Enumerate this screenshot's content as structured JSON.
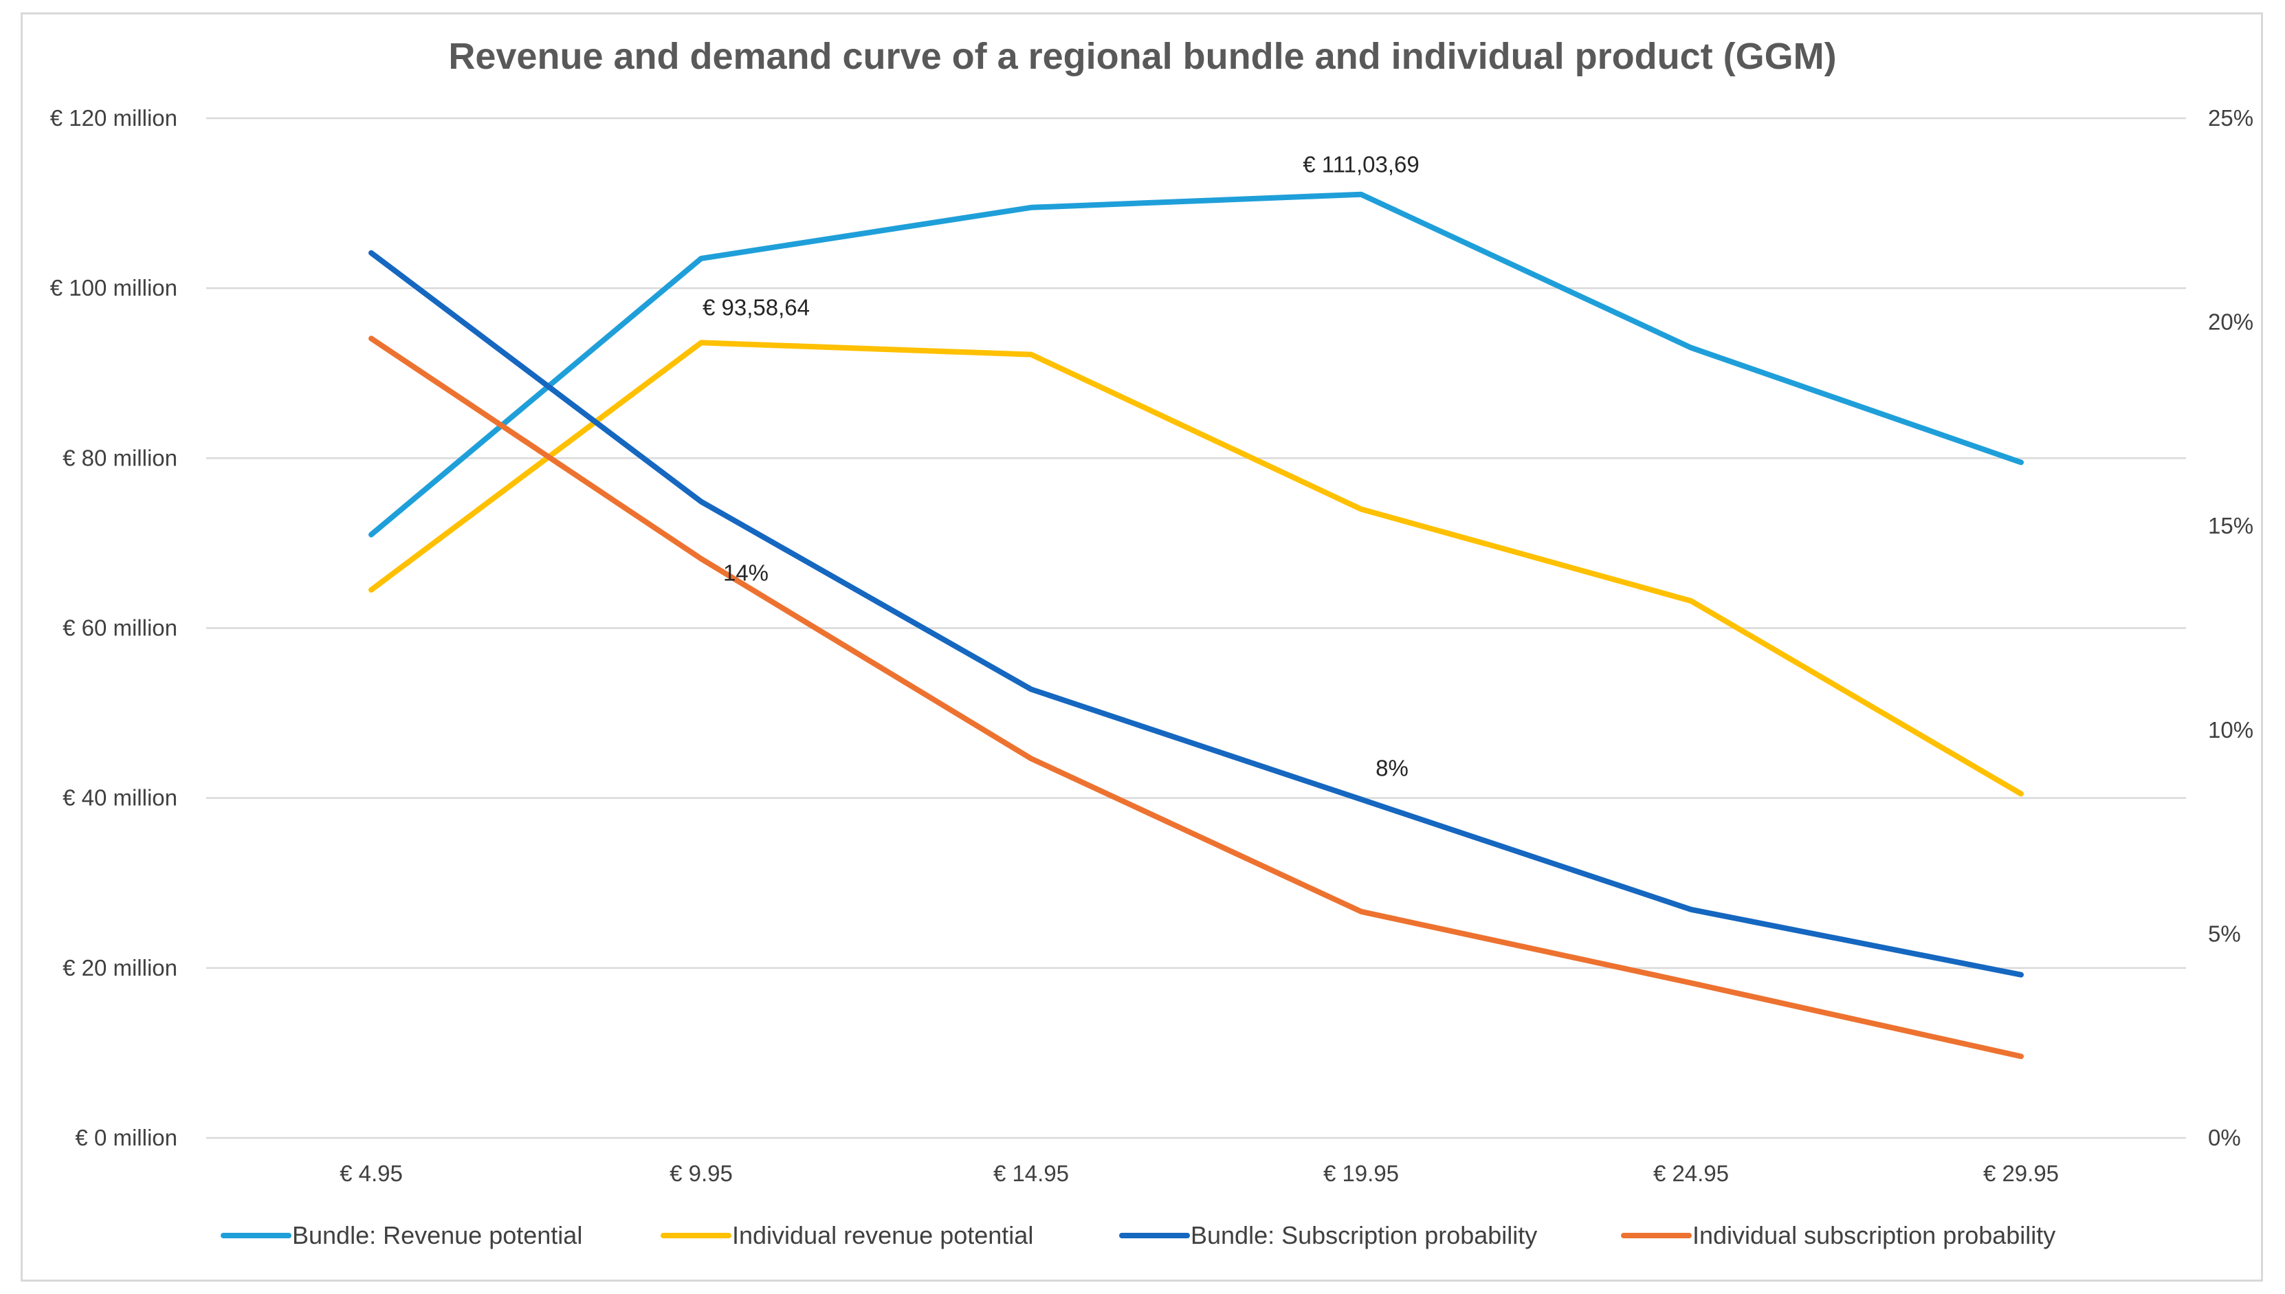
{
  "chart_data": {
    "type": "line",
    "title": "Revenue and demand curve of a regional bundle and individual product (GGM)",
    "categories": [
      "€ 4.95",
      "€ 9.95",
      "€ 14.95",
      "€ 19.95",
      "€ 24.95",
      "€ 29.95"
    ],
    "y_left": {
      "ticks": [
        "€ 0 million",
        "€ 20 million",
        "€ 40 million",
        "€ 60 million",
        "€ 80 million",
        "€ 100 million",
        "€ 120 million"
      ],
      "ylim": [
        0,
        120
      ],
      "grid": true
    },
    "y_right": {
      "ticks": [
        "0%",
        "5%",
        "10%",
        "15%",
        "20%",
        "25%"
      ],
      "ylim": [
        0,
        25
      ]
    },
    "series": [
      {
        "name": "Bundle: Revenue potential",
        "axis": "left",
        "color": "#1f9fd9",
        "values": [
          71,
          103.5,
          109.5,
          111.04,
          93,
          79.5
        ]
      },
      {
        "name": "Individual revenue potential",
        "axis": "left",
        "color": "#ffc000",
        "values": [
          64.5,
          93.59,
          92.2,
          74,
          63.2,
          40.5
        ]
      },
      {
        "name": "Bundle: Subscription probability",
        "axis": "right",
        "color": "#1567c0",
        "values": [
          21.7,
          15.6,
          11.0,
          8.3,
          5.6,
          4.0
        ]
      },
      {
        "name": "Individual subscription probability",
        "axis": "right",
        "color": "#ed7230",
        "values": [
          19.6,
          14.2,
          9.3,
          5.55,
          3.8,
          2.0
        ]
      }
    ],
    "annotations": [
      {
        "text": "€ 111,03,69",
        "series": 0,
        "index": 3
      },
      {
        "text": "€ 93,58,64",
        "series": 1,
        "index": 1
      },
      {
        "text": "14%",
        "series": 3,
        "index": 1
      },
      {
        "text": "8%",
        "series": 2,
        "index": 3
      }
    ],
    "legend": "bottom"
  }
}
